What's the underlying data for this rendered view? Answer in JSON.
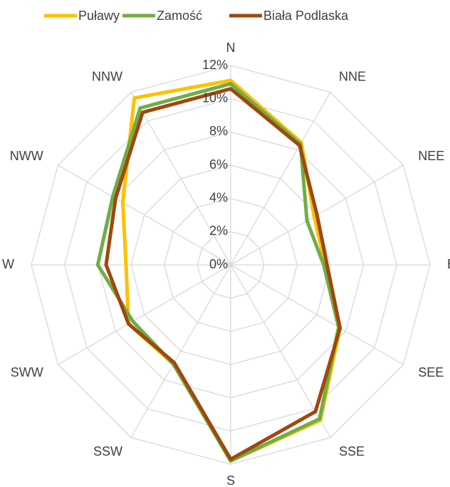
{
  "chart_data": {
    "type": "radar",
    "categories": [
      "N",
      "NNE",
      "NEE",
      "E",
      "SEE",
      "SSE",
      "S",
      "SSW",
      "SWW",
      "W",
      "NWW",
      "NNW"
    ],
    "series": [
      {
        "name": "Puławy",
        "color": "#ffc000",
        "values": [
          11.1,
          8.5,
          5.8,
          5.7,
          7.6,
          10.8,
          11.8,
          6.9,
          7.1,
          6.3,
          7.5,
          11.6
        ]
      },
      {
        "name": "Zamość",
        "color": "#70ad47",
        "values": [
          10.9,
          8.4,
          5.3,
          5.6,
          7.5,
          10.7,
          11.8,
          6.9,
          6.8,
          8.0,
          8.2,
          10.9
        ]
      },
      {
        "name": "Biała Podlaska",
        "color": "#9e480e",
        "values": [
          10.6,
          8.3,
          6.0,
          5.8,
          7.6,
          10.2,
          11.7,
          6.8,
          7.1,
          7.5,
          8.0,
          10.6
        ]
      }
    ],
    "ylim": [
      0,
      12
    ],
    "yticks": [
      {
        "value": 0,
        "label": "0%"
      },
      {
        "value": 2,
        "label": "2%"
      },
      {
        "value": 4,
        "label": "4%"
      },
      {
        "value": 6,
        "label": "6%"
      },
      {
        "value": 8,
        "label": "8%"
      },
      {
        "value": 10,
        "label": "10%"
      },
      {
        "value": 12,
        "label": "12%"
      }
    ],
    "grid": true,
    "legend": "top"
  }
}
